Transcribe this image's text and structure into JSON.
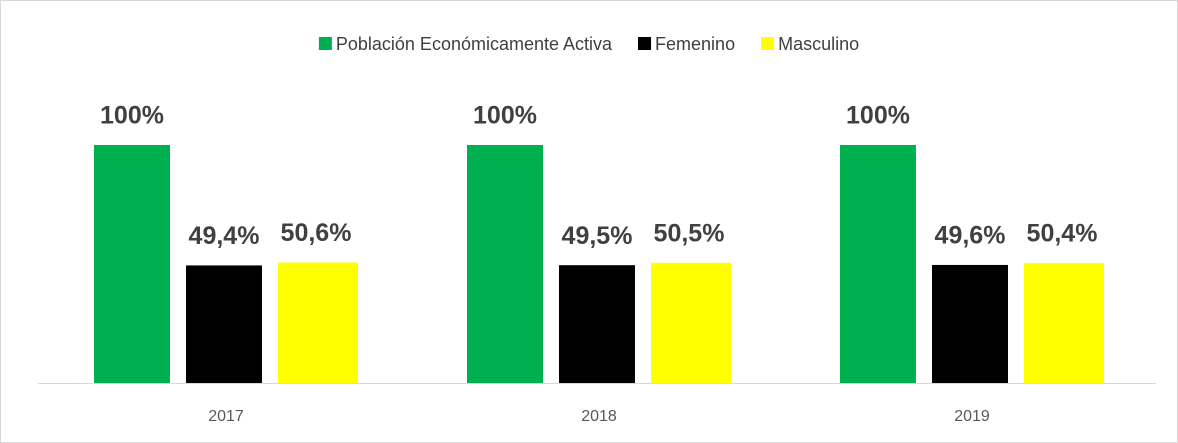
{
  "chart_data": {
    "type": "bar",
    "categories": [
      "2017",
      "2018",
      "2019"
    ],
    "series": [
      {
        "name": "Población Económicamente Activa",
        "color": "#00b050",
        "values": [
          100,
          100,
          100
        ],
        "value_labels": [
          "100%",
          "100%",
          "100%"
        ]
      },
      {
        "name": "Femenino",
        "color": "#000000",
        "values": [
          49.4,
          49.5,
          49.6
        ],
        "value_labels": [
          "49,4%",
          "49,5%",
          "49,6%"
        ]
      },
      {
        "name": "Masculino",
        "color": "#ffff00",
        "values": [
          50.6,
          50.5,
          50.4
        ],
        "value_labels": [
          "50,6%",
          "50,5%",
          "50,4%"
        ]
      }
    ],
    "legend": "top"
  }
}
